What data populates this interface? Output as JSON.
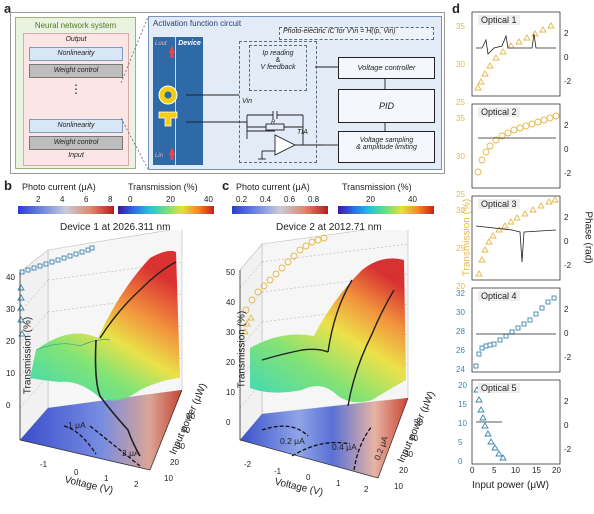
{
  "labels": {
    "a": "a",
    "b": "b",
    "c": "c",
    "d": "d"
  },
  "panel_a": {
    "nn_title": "Neural network system",
    "layers": [
      "Output",
      "Nonlinearity",
      "Weight control",
      "⋮",
      "Nonlinearity",
      "Weight control",
      "Input"
    ],
    "afc_title": "Activation function circuit",
    "ic_label": "Photo-electric IC for V′in = H(Ip, Vin)",
    "device": "Device",
    "l_out": "Lout",
    "l_in": "Lin",
    "vin": "Vin",
    "ip_reading": "Ip reading",
    "amp": "&",
    "v_feedback": "V feedback",
    "r": "R",
    "tia": "TIA",
    "voltage_controller": "Voltage controller",
    "pid": "PID",
    "vs_line1": "Voltage sampling",
    "vs_line2": "& amplitude limiting"
  },
  "panel_b": {
    "cbar1_title": "Photo current (μA)",
    "cbar1_ticks": [
      "2",
      "4",
      "6",
      "8"
    ],
    "cbar2_title": "Transmission (%)",
    "cbar2_ticks": [
      "0",
      "20",
      "40"
    ],
    "title": "Device 1 at 2026.311 nm",
    "zlabel": "Transmission (%)",
    "zticks": [
      "40",
      "30",
      "20",
      "10",
      "0"
    ],
    "xlabel": "Voltage (V)",
    "xticks": [
      "-1",
      "0",
      "1",
      "2"
    ],
    "ylabel": "Input power (μW)",
    "yticks": [
      "10",
      "20",
      "30",
      "40",
      "50"
    ],
    "contours": [
      "1 μA",
      "2 μA"
    ]
  },
  "panel_c": {
    "cbar1_title": "Photo current (μA)",
    "cbar1_ticks": [
      "0.2",
      "0.4",
      "0.6",
      "0.8"
    ],
    "cbar2_title": "Transmission (%)",
    "cbar2_ticks": [
      "20",
      "40"
    ],
    "title": "Device 2 at 2012.71 nm",
    "zlabel": "Transmission (%)",
    "zticks": [
      "50",
      "40",
      "30",
      "20",
      "10",
      "0"
    ],
    "xlabel": "Voltage (V)",
    "xticks": [
      "-2",
      "-1",
      "0",
      "1",
      "2"
    ],
    "ylabel": "Input power (μW)",
    "yticks": [
      "10",
      "20",
      "30",
      "40",
      "50"
    ],
    "contours": [
      "0.2 μA",
      "0.4 μA",
      "0.2 μA"
    ]
  },
  "panel_d": {
    "ylabel_left": "Transmission (%)",
    "ylabel_right": "Phase (rad)",
    "xlabel": "Input power (μW)",
    "xticks": [
      "0",
      "5",
      "10",
      "15",
      "20"
    ],
    "right_ticks": [
      "2",
      "0",
      "-2"
    ],
    "subplots": [
      {
        "name": "Optical 1",
        "yticks": [
          "35",
          "30",
          "25"
        ]
      },
      {
        "name": "Optical 2",
        "yticks": [
          "35",
          "30",
          "25"
        ]
      },
      {
        "name": "Optical 3",
        "yticks": [
          "30",
          "25",
          "20"
        ]
      },
      {
        "name": "Optical 4",
        "yticks": [
          "32",
          "30",
          "28",
          "26",
          "24"
        ]
      },
      {
        "name": "Optical 5",
        "yticks": [
          "20",
          "15",
          "10",
          "5",
          "0"
        ]
      }
    ]
  },
  "colors": {
    "gold": "#e6b84a",
    "teal": "#3b86b0",
    "blue_box": "#2f6aa8",
    "accent_red": "#d94040"
  }
}
